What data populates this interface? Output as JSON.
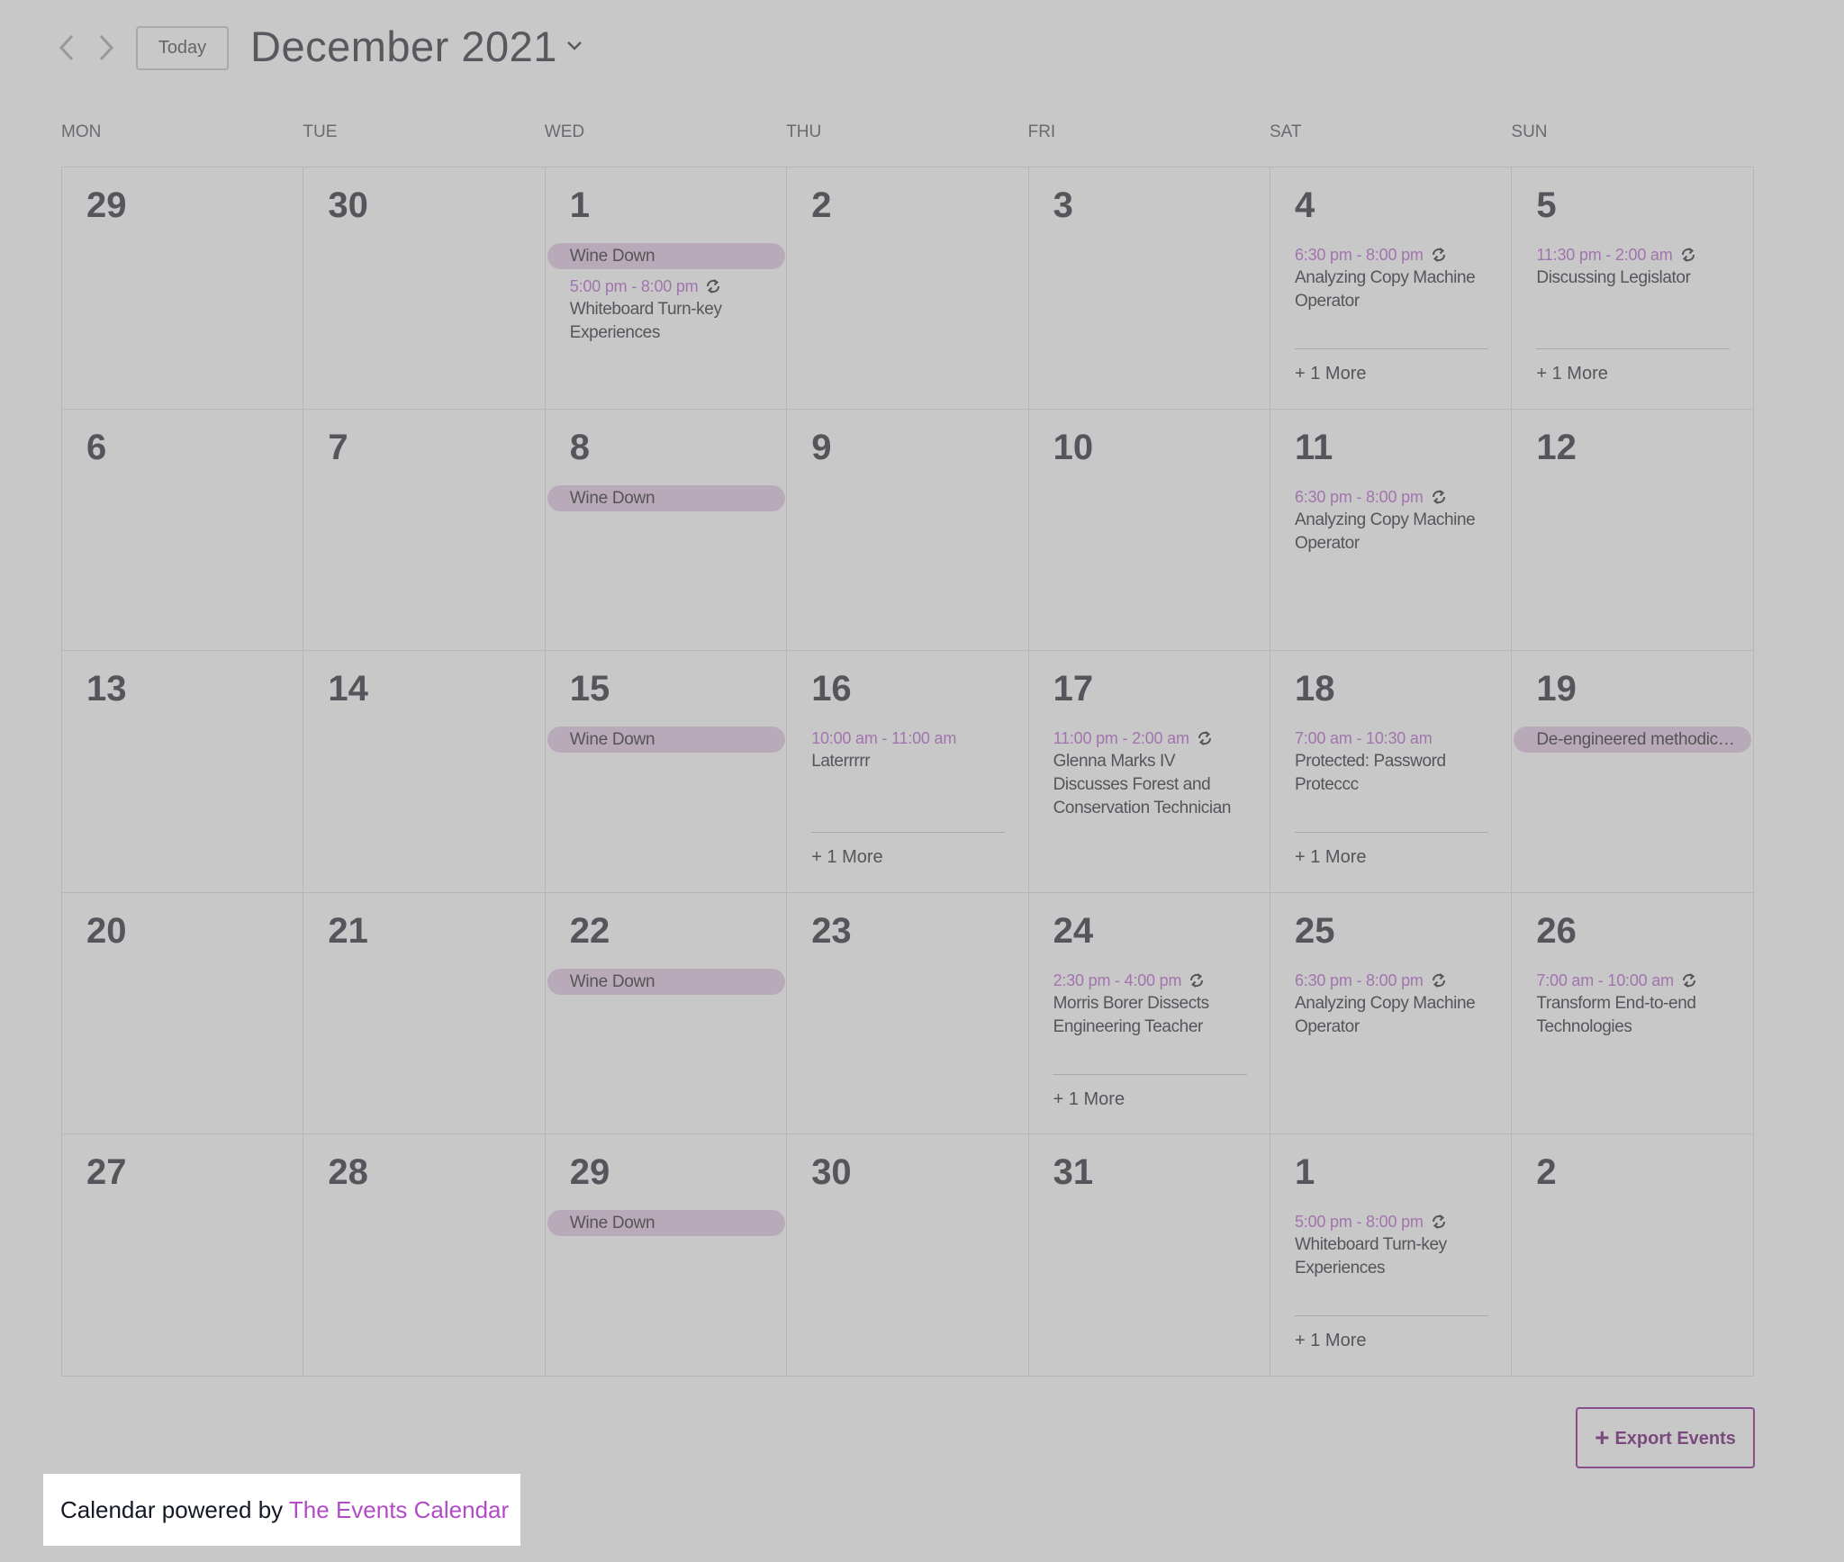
{
  "header": {
    "today": "Today",
    "title": "December 2021"
  },
  "weekdays": [
    "MON",
    "TUE",
    "WED",
    "THU",
    "FRI",
    "SAT",
    "SUN"
  ],
  "weeks": [
    [
      {
        "day": 29
      },
      {
        "day": 30
      },
      {
        "day": 1,
        "all_day": [
          "Wine Down"
        ],
        "events": [
          {
            "time": "5:00 pm - 8:00 pm",
            "title": "Whiteboard Turn-key Experiences",
            "recurring": true
          }
        ]
      },
      {
        "day": 2
      },
      {
        "day": 3
      },
      {
        "day": 4,
        "events": [
          {
            "time": "6:30 pm - 8:00 pm",
            "title": "Analyzing Copy Machine Operator",
            "recurring": true
          }
        ],
        "more": "+ 1 More"
      },
      {
        "day": 5,
        "events": [
          {
            "time": "11:30 pm - 2:00 am",
            "title": "Discussing Legislator",
            "recurring": true
          }
        ],
        "more": "+ 1 More"
      }
    ],
    [
      {
        "day": 6
      },
      {
        "day": 7
      },
      {
        "day": 8,
        "all_day": [
          "Wine Down"
        ]
      },
      {
        "day": 9
      },
      {
        "day": 10
      },
      {
        "day": 11,
        "events": [
          {
            "time": "6:30 pm - 8:00 pm",
            "title": "Analyzing Copy Machine Operator",
            "recurring": true
          }
        ]
      },
      {
        "day": 12
      }
    ],
    [
      {
        "day": 13
      },
      {
        "day": 14
      },
      {
        "day": 15,
        "all_day": [
          "Wine Down"
        ]
      },
      {
        "day": 16,
        "events": [
          {
            "time": "10:00 am - 11:00 am",
            "title": "Laterrrrr",
            "recurring": false
          }
        ],
        "more": "+ 1 More"
      },
      {
        "day": 17,
        "events": [
          {
            "time": "11:00 pm - 2:00 am",
            "title": "Glenna Marks IV Discusses Forest and Conservation Technician",
            "recurring": true
          }
        ]
      },
      {
        "day": 18,
        "events": [
          {
            "time": "7:00 am - 10:30 am",
            "title": "Protected: Password Proteccc",
            "recurring": false
          }
        ],
        "more": "+ 1 More"
      },
      {
        "day": 19,
        "all_day": [
          "De-engineered methodic…"
        ]
      }
    ],
    [
      {
        "day": 20
      },
      {
        "day": 21
      },
      {
        "day": 22,
        "all_day": [
          "Wine Down"
        ]
      },
      {
        "day": 23
      },
      {
        "day": 24,
        "events": [
          {
            "time": "2:30 pm - 4:00 pm",
            "title": "Morris Borer Dissects Engineering Teacher",
            "recurring": true
          }
        ],
        "more": "+ 1 More"
      },
      {
        "day": 25,
        "events": [
          {
            "time": "6:30 pm - 8:00 pm",
            "title": "Analyzing Copy Machine Operator",
            "recurring": true
          }
        ]
      },
      {
        "day": 26,
        "events": [
          {
            "time": "7:00 am - 10:00 am",
            "title": "Transform End-to-end Technologies",
            "recurring": true
          }
        ]
      }
    ],
    [
      {
        "day": 27
      },
      {
        "day": 28
      },
      {
        "day": 29,
        "all_day": [
          "Wine Down"
        ]
      },
      {
        "day": 30
      },
      {
        "day": 31
      },
      {
        "day": 1,
        "events": [
          {
            "time": "5:00 pm - 8:00 pm",
            "title": "Whiteboard Turn-key Experiences",
            "recurring": true
          }
        ],
        "more": "+ 1 More"
      },
      {
        "day": 2
      }
    ]
  ],
  "export": "Export Events",
  "footer": {
    "text": "Calendar powered by",
    "link": "The Events Calendar"
  }
}
